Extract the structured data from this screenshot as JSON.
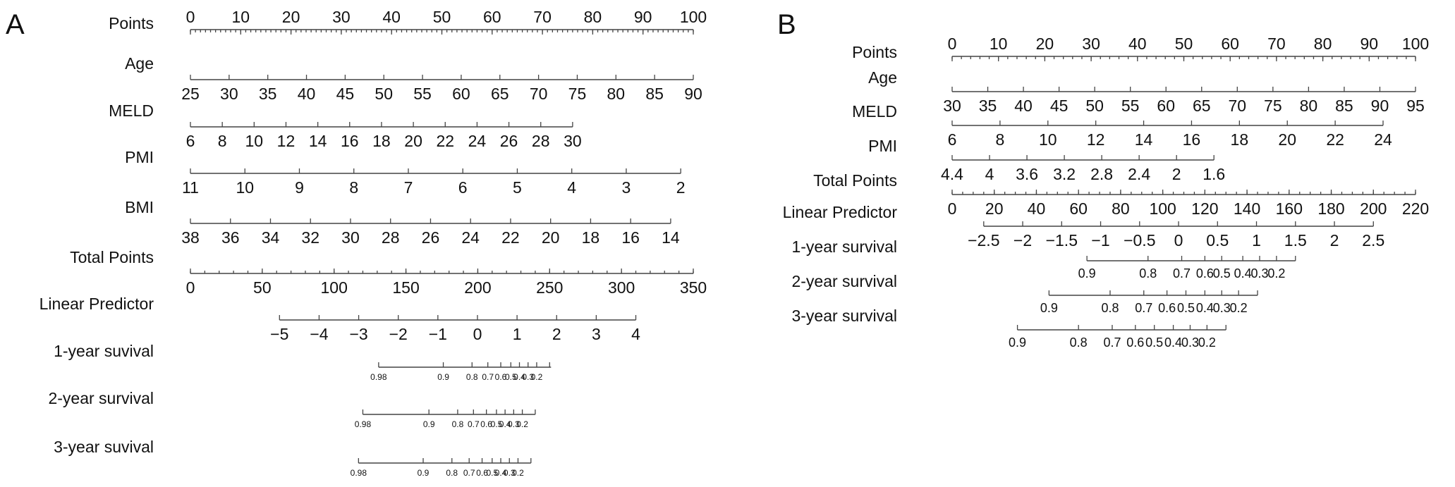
{
  "figure": {
    "panels": [
      {
        "id": "A",
        "letter": "A"
      },
      {
        "id": "B",
        "letter": "B"
      }
    ]
  },
  "chart_data": [
    {
      "type": "nomogram",
      "panel": "A",
      "rows": [
        {
          "label": "Points",
          "scale": "linear",
          "from": 0,
          "to": 100,
          "ticks": [
            0,
            10,
            20,
            30,
            40,
            50,
            60,
            70,
            80,
            90,
            100
          ],
          "tick_labels": [
            "0",
            "10",
            "20",
            "30",
            "40",
            "50",
            "60",
            "70",
            "80",
            "90",
            "100"
          ],
          "minor_step": 1,
          "labels_above": true
        },
        {
          "label": "Age",
          "scale": "points",
          "range_points": [
            0,
            100
          ],
          "ticks": [
            25,
            30,
            35,
            40,
            45,
            50,
            55,
            60,
            65,
            70,
            75,
            80,
            85,
            90
          ],
          "tick_labels": [
            "25",
            "30",
            "35",
            "40",
            "45",
            "50",
            "55",
            "60",
            "65",
            "70",
            "75",
            "80",
            "85",
            "90"
          ]
        },
        {
          "label": "MELD",
          "scale": "points",
          "range_points": [
            0,
            76
          ],
          "ticks": [
            6,
            8,
            10,
            12,
            14,
            16,
            18,
            20,
            22,
            24,
            26,
            28,
            30
          ],
          "tick_labels": [
            "6",
            "8",
            "10",
            "12",
            "14",
            "16",
            "18",
            "20",
            "22",
            "24",
            "26",
            "28",
            "30"
          ]
        },
        {
          "label": "PMI",
          "scale": "points",
          "range_points": [
            0,
            97.5
          ],
          "ticks": [
            11,
            10,
            9,
            8,
            7,
            6,
            5,
            4,
            3,
            2
          ],
          "tick_labels": [
            "11",
            "10",
            "9",
            "8",
            "7",
            "6",
            "5",
            "4",
            "3",
            "2"
          ]
        },
        {
          "label": "BMI",
          "scale": "points",
          "range_points": [
            0,
            95.5
          ],
          "ticks": [
            38,
            36,
            34,
            32,
            30,
            28,
            26,
            24,
            22,
            20,
            18,
            16,
            14
          ],
          "tick_labels": [
            "38",
            "36",
            "34",
            "32",
            "30",
            "28",
            "26",
            "24",
            "22",
            "20",
            "18",
            "16",
            "14"
          ]
        },
        {
          "label": "Total Points",
          "scale": "linear",
          "from": 0,
          "to": 350,
          "ticks": [
            0,
            50,
            100,
            150,
            200,
            250,
            300,
            350
          ],
          "tick_labels": [
            "0",
            "50",
            "100",
            "150",
            "200",
            "250",
            "300",
            "350"
          ],
          "minor_step": 10
        },
        {
          "label": "Linear Predictor",
          "scale": "total_points",
          "range_total": [
            62,
            310
          ],
          "ticks": [
            -5,
            -4,
            -3,
            -2,
            -1,
            0,
            1,
            2,
            3,
            4
          ],
          "tick_labels": [
            "−5",
            "−4",
            "−3",
            "−2",
            "−1",
            "0",
            "1",
            "2",
            "3",
            "4"
          ]
        },
        {
          "label": "1-year suvival",
          "scale": "total_points",
          "small": true,
          "line_total": [
            131,
            251
          ],
          "ticks_total": [
            131,
            176,
            196,
            207,
            216,
            223,
            229,
            235,
            241,
            250
          ],
          "tick_labels": [
            "0.98",
            "0.9",
            "0.8",
            "0.7",
            "0.6",
            "0.5",
            "0.4",
            "0.3",
            "0.2",
            ""
          ]
        },
        {
          "label": "2-year survival",
          "scale": "total_points",
          "small": true,
          "line_total": [
            120,
            240
          ],
          "ticks_total": [
            120,
            166,
            186,
            197,
            206,
            213,
            219,
            225,
            231,
            240
          ],
          "tick_labels": [
            "0.98",
            "0.9",
            "0.8",
            "0.7",
            "0.6",
            "0.5",
            "0.4",
            "0.3",
            "0.2",
            ""
          ]
        },
        {
          "label": "3-year suvival",
          "scale": "total_points",
          "small": true,
          "line_total": [
            117,
            237
          ],
          "ticks_total": [
            117,
            162,
            182,
            194,
            203,
            210,
            216,
            222,
            228,
            237
          ],
          "tick_labels": [
            "0.98",
            "0.9",
            "0.8",
            "0.7",
            "0.6",
            "0.5",
            "0.4",
            "0.3",
            "0.2",
            ""
          ]
        }
      ]
    },
    {
      "type": "nomogram",
      "panel": "B",
      "rows": [
        {
          "label": "Points",
          "scale": "linear",
          "from": 0,
          "to": 100,
          "ticks": [
            0,
            10,
            20,
            30,
            40,
            50,
            60,
            70,
            80,
            90,
            100
          ],
          "tick_labels": [
            "0",
            "10",
            "20",
            "30",
            "40",
            "50",
            "60",
            "70",
            "80",
            "90",
            "100"
          ],
          "minor_step": 2,
          "labels_above": true
        },
        {
          "label": "Age",
          "scale": "points",
          "range_points": [
            0,
            100
          ],
          "ticks": [
            30,
            35,
            40,
            45,
            50,
            55,
            60,
            65,
            70,
            75,
            80,
            85,
            90,
            95
          ],
          "tick_labels": [
            "30",
            "35",
            "40",
            "45",
            "50",
            "55",
            "60",
            "65",
            "70",
            "75",
            "80",
            "85",
            "90",
            "95"
          ]
        },
        {
          "label": "MELD",
          "scale": "points",
          "range_points": [
            0,
            93
          ],
          "ticks": [
            6,
            8,
            10,
            12,
            14,
            16,
            18,
            20,
            22,
            24
          ],
          "tick_labels": [
            "6",
            "8",
            "10",
            "12",
            "14",
            "16",
            "18",
            "20",
            "22",
            "24"
          ]
        },
        {
          "label": "PMI",
          "scale": "points",
          "range_points": [
            0,
            56.5
          ],
          "ticks": [
            4.4,
            4.0,
            3.6,
            3.2,
            2.8,
            2.4,
            2.0,
            1.6
          ],
          "tick_labels": [
            "4.4",
            "4",
            "3.6",
            "3.2",
            "2.8",
            "2.4",
            "2",
            "1.6"
          ]
        },
        {
          "label": "Total Points",
          "scale": "linear",
          "from": 0,
          "to": 220,
          "ticks": [
            0,
            20,
            40,
            60,
            80,
            100,
            120,
            140,
            160,
            180,
            200,
            220
          ],
          "tick_labels": [
            "0",
            "20",
            "40",
            "60",
            "80",
            "100",
            "120",
            "140",
            "160",
            "180",
            "200",
            "220"
          ],
          "minor_step": 5
        },
        {
          "label": "Linear Predictor",
          "scale": "total_points",
          "range_total": [
            15,
            200
          ],
          "ticks": [
            -2.5,
            -2,
            -1.5,
            -1,
            -0.5,
            0,
            0.5,
            1,
            1.5,
            2,
            2.5
          ],
          "tick_labels": [
            "−2.5",
            "−2",
            "−1.5",
            "−1",
            "−0.5",
            "0",
            "0.5",
            "1",
            "1.5",
            "2",
            "2.5"
          ]
        },
        {
          "label": "1-year survival",
          "scale": "total_points",
          "medium": true,
          "line_total": [
            64,
            163
          ],
          "ticks_total": [
            64,
            93,
            109,
            120,
            128,
            138,
            146,
            154,
            163
          ],
          "tick_labels": [
            "0.9",
            "0.8",
            "0.7",
            "0.6",
            "0.5",
            "0.4",
            "0.3",
            "0.2",
            ""
          ]
        },
        {
          "label": "2-year survival",
          "scale": "total_points",
          "medium": true,
          "line_total": [
            46,
            145
          ],
          "ticks_total": [
            46,
            75,
            91,
            102,
            111,
            120,
            128,
            136,
            145
          ],
          "tick_labels": [
            "0.9",
            "0.8",
            "0.7",
            "0.6",
            "0.5",
            "0.4",
            "0.3",
            "0.2",
            ""
          ]
        },
        {
          "label": "3-year survival",
          "scale": "total_points",
          "medium": true,
          "line_total": [
            31,
            130
          ],
          "ticks_total": [
            31,
            60,
            76,
            87,
            96,
            105,
            113,
            121,
            130
          ],
          "tick_labels": [
            "0.9",
            "0.8",
            "0.7",
            "0.6",
            "0.5",
            "0.4",
            "0.3",
            "0.2",
            ""
          ]
        }
      ]
    }
  ]
}
